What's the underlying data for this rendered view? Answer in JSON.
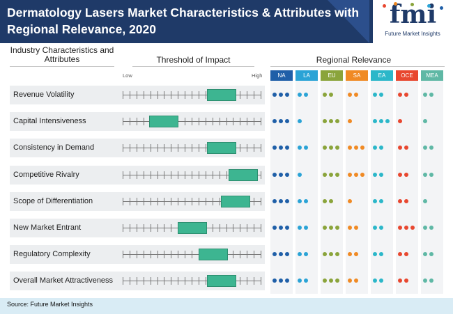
{
  "title": "Dermatology Lasers Market Characteristics & Attributes with Regional Relevance, 2020",
  "logo": {
    "mark": "fmi",
    "tagline": "Future Market Insights"
  },
  "columns": {
    "characteristics": "Industry Characteristics and Attributes",
    "threshold": "Threshold of Impact",
    "regional": "Regional Relevance",
    "low": "Low",
    "high": "High"
  },
  "regions": [
    {
      "code": "NA",
      "color": "#1f5fa8"
    },
    {
      "code": "LA",
      "color": "#2aa3d6"
    },
    {
      "code": "EU",
      "color": "#8aa43b"
    },
    {
      "code": "SA",
      "color": "#f08a24"
    },
    {
      "code": "EA",
      "color": "#2bb7c9"
    },
    {
      "code": "OCE",
      "color": "#e8472f"
    },
    {
      "code": "MEA",
      "color": "#5fb8a5"
    }
  ],
  "rows": [
    {
      "label": "Revenue Volatility",
      "impact_start": 0.61,
      "impact_end": 0.82,
      "relevance": [
        3,
        2,
        2,
        2,
        2,
        2,
        2
      ]
    },
    {
      "label": "Capital Intensiveness",
      "impact_start": 0.19,
      "impact_end": 0.4,
      "relevance": [
        3,
        1,
        3,
        1,
        3,
        1,
        1
      ]
    },
    {
      "label": "Consistency in Demand",
      "impact_start": 0.61,
      "impact_end": 0.82,
      "relevance": [
        3,
        2,
        3,
        3,
        2,
        2,
        2
      ]
    },
    {
      "label": "Competitive Rivalry",
      "impact_start": 0.77,
      "impact_end": 0.98,
      "relevance": [
        3,
        1,
        3,
        3,
        2,
        2,
        2
      ]
    },
    {
      "label": "Scope of Differentiation",
      "impact_start": 0.71,
      "impact_end": 0.92,
      "relevance": [
        3,
        2,
        2,
        1,
        2,
        2,
        1
      ]
    },
    {
      "label": "New Market Entrant",
      "impact_start": 0.4,
      "impact_end": 0.61,
      "relevance": [
        3,
        2,
        3,
        2,
        2,
        3,
        2
      ]
    },
    {
      "label": "Regulatory Complexity",
      "impact_start": 0.55,
      "impact_end": 0.76,
      "relevance": [
        3,
        2,
        3,
        2,
        2,
        2,
        2
      ]
    },
    {
      "label": "Overall Market Attractiveness",
      "impact_start": 0.61,
      "impact_end": 0.82,
      "relevance": [
        3,
        2,
        3,
        2,
        2,
        2,
        2
      ]
    }
  ],
  "source": "Source: Future Market Insights"
}
